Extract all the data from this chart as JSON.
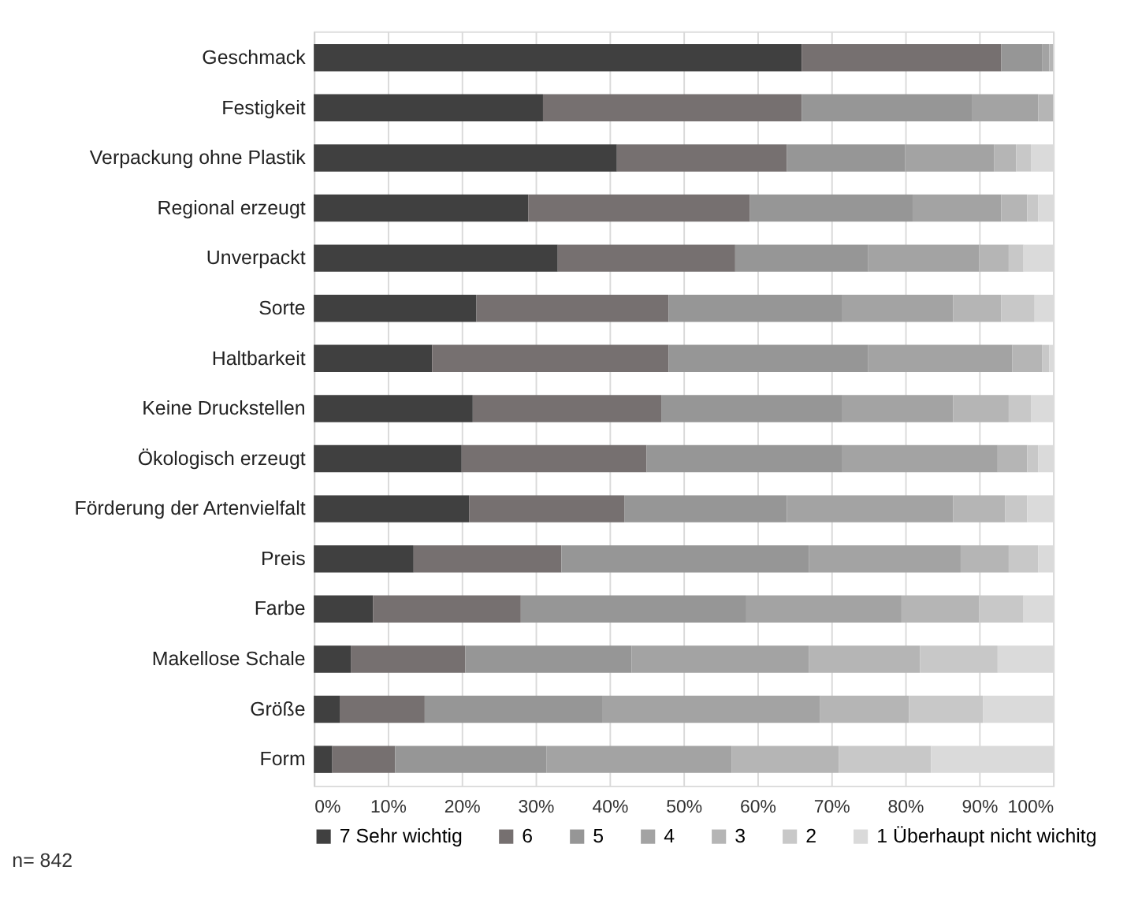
{
  "chart_data": {
    "type": "bar",
    "orientation": "horizontal",
    "stacked": true,
    "categories": [
      "Geschmack",
      "Festigkeit",
      "Verpackung ohne Plastik",
      "Regional erzeugt",
      "Unverpackt",
      "Sorte",
      "Haltbarkeit",
      "Keine Druckstellen",
      "Ökologisch erzeugt",
      "Förderung der Artenvielfalt",
      "Preis",
      "Farbe",
      "Makellose Schale",
      "Größe",
      "Form"
    ],
    "series": [
      {
        "name": "7 Sehr wichtig",
        "color": "#404040",
        "values": [
          66,
          31,
          41,
          29,
          33,
          22,
          16,
          21.5,
          20,
          21,
          13.5,
          8,
          5,
          3.5,
          2.5
        ]
      },
      {
        "name": "6",
        "color": "#767070",
        "values": [
          27,
          35,
          23,
          30,
          24,
          26,
          32,
          25.5,
          25,
          21,
          20,
          20,
          15.5,
          11.5,
          8.5
        ]
      },
      {
        "name": "5",
        "color": "#969696",
        "values": [
          5.5,
          23,
          16,
          22,
          18,
          23.5,
          27,
          24.5,
          26.5,
          22,
          33.5,
          30.5,
          22.5,
          24,
          20.5
        ]
      },
      {
        "name": "4",
        "color": "#a3a3a3",
        "values": [
          1,
          9,
          12,
          12,
          15,
          15,
          19.5,
          15,
          21,
          22.5,
          20.5,
          21,
          24,
          29.5,
          25
        ]
      },
      {
        "name": "3",
        "color": "#b5b5b5",
        "values": [
          0.5,
          2,
          3,
          3.5,
          4,
          6.5,
          4,
          7.5,
          4,
          7,
          6.5,
          10.5,
          15,
          12,
          14.5
        ]
      },
      {
        "name": "2",
        "color": "#c8c8c8",
        "values": [
          0,
          0,
          2,
          1.5,
          2,
          4.5,
          1,
          3,
          1.5,
          3,
          4,
          6,
          10.5,
          10,
          12.5
        ]
      },
      {
        "name": "1 Überhaupt nicht wichitg",
        "color": "#dadada",
        "values": [
          0,
          0,
          3,
          2,
          4,
          2.5,
          0.5,
          3,
          2,
          3.5,
          2,
          4,
          7.5,
          9.5,
          16.5
        ]
      }
    ],
    "xlim": [
      0,
      100
    ],
    "xticks": [
      {
        "value": 0,
        "label": "0%"
      },
      {
        "value": 10,
        "label": "10%"
      },
      {
        "value": 20,
        "label": "20%"
      },
      {
        "value": 30,
        "label": "30%"
      },
      {
        "value": 40,
        "label": "40%"
      },
      {
        "value": 50,
        "label": "50%"
      },
      {
        "value": 60,
        "label": "60%"
      },
      {
        "value": 70,
        "label": "70%"
      },
      {
        "value": 80,
        "label": "80%"
      },
      {
        "value": 90,
        "label": "90%"
      },
      {
        "value": 100,
        "label": "100%"
      }
    ],
    "grid": "x",
    "legend": "bottom",
    "annotations": [
      "n= 842"
    ]
  }
}
